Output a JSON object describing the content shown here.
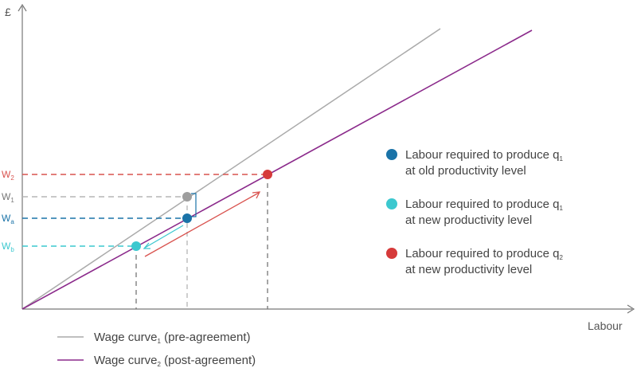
{
  "axes": {
    "y_label": "£",
    "x_label": "Labour"
  },
  "wage_labels": {
    "w2": {
      "base": "W",
      "sub": "2",
      "color": "#d9534f"
    },
    "w1": {
      "base": "W",
      "sub": "1",
      "color": "#777777"
    },
    "wa": {
      "base": "W",
      "sub": "a",
      "color": "#1a73a8"
    },
    "wb": {
      "base": "W",
      "sub": "b",
      "color": "#3cc8cf"
    }
  },
  "point_legend": [
    {
      "line1": "Labour required to produce q",
      "sub": "1",
      "line2": "at old productivity level",
      "color": "#1a73a8",
      "icon": "dark-blue-dot"
    },
    {
      "line1": "Labour required to produce q",
      "sub": "1",
      "line2": "at new productivity level",
      "color": "#3cc8cf",
      "icon": "cyan-dot"
    },
    {
      "line1": "Labour required to produce q",
      "sub": "2",
      "line2": "at new productivity level",
      "color": "#d63a3a",
      "icon": "red-dot"
    }
  ],
  "curve_legend": [
    {
      "pre": "Wage curve",
      "sub": "1",
      "post": " (pre-agreement)",
      "color": "#aaaaaa"
    },
    {
      "pre": "Wage curve",
      "sub": "2",
      "post": " (post-agreement)",
      "color": "#8b2a8b"
    }
  ],
  "colors": {
    "axis": "#777777",
    "curve1": "#aaaaaa",
    "curve2": "#8b2a8b",
    "grey_point": "#9e9e9e",
    "blue_point": "#1a73a8",
    "cyan_point": "#3cc8cf",
    "red_point": "#d63a3a"
  }
}
